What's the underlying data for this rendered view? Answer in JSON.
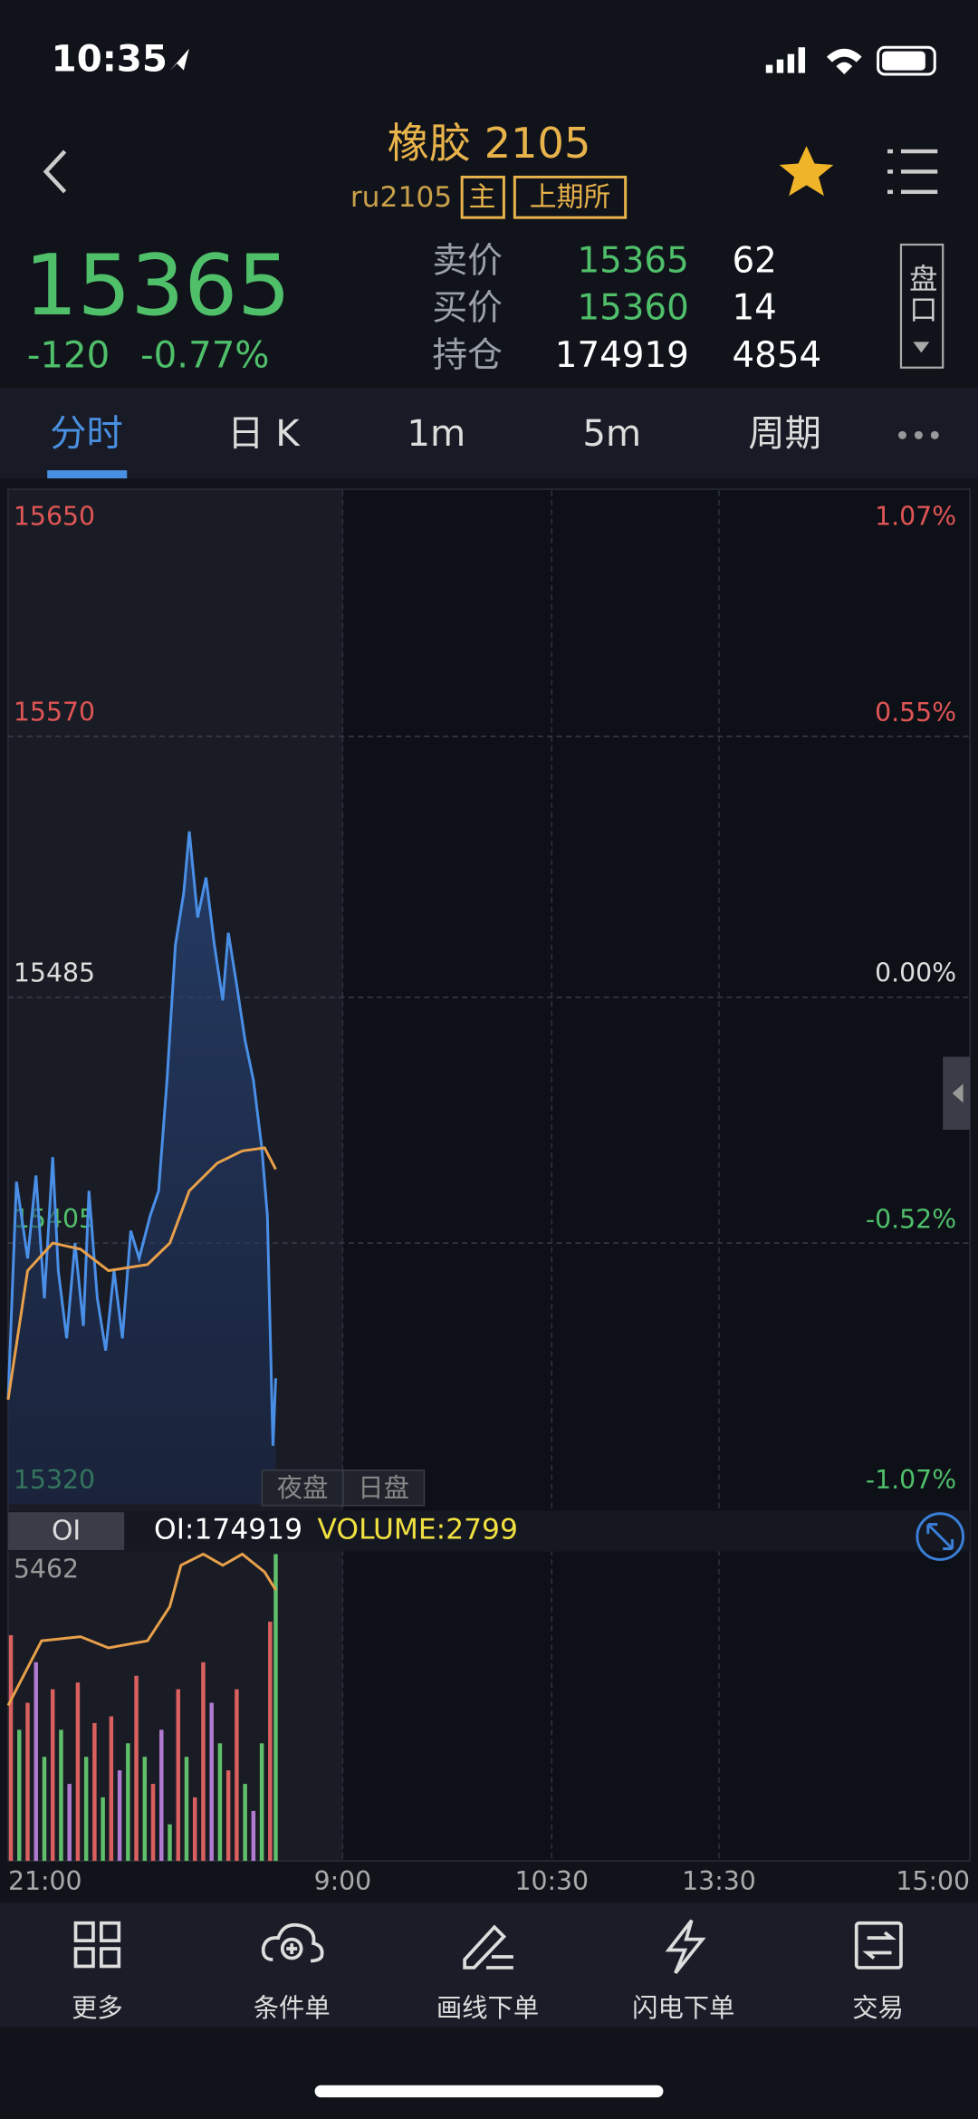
{
  "status_bar": {
    "time": "10:35"
  },
  "header": {
    "title": "橡胶 2105",
    "code": "ru2105",
    "tags": [
      "主",
      "上期所"
    ]
  },
  "quote": {
    "price": "15365",
    "change": "-120",
    "change_pct": "-0.77%",
    "book": [
      {
        "label": "卖价",
        "price": "15365",
        "qty": "62"
      },
      {
        "label": "买价",
        "price": "15360",
        "qty": "14"
      },
      {
        "label": "持仓",
        "price": "174919",
        "qty": "4854"
      }
    ],
    "depth_button": "盘口"
  },
  "tabs": [
    "分时",
    "日 K",
    "1m",
    "5m",
    "周期"
  ],
  "chart_data": [
    {
      "type": "line",
      "xlim": [
        0,
        345
      ],
      "ylim": [
        15320,
        15650
      ],
      "yticks": [
        15320,
        15405,
        15485,
        15570,
        15650
      ],
      "y2lim": [
        -1.07,
        1.07
      ],
      "y2ticks": [
        {
          "value": -1.07,
          "label": "-1.07%"
        },
        {
          "value": -0.52,
          "label": "-0.52%"
        },
        {
          "value": 0,
          "label": "0.00%"
        },
        {
          "value": 0.55,
          "label": "0.55%"
        },
        {
          "value": 1.07,
          "label": "1.07%"
        }
      ],
      "grid": true,
      "annotations": [
        "夜盘",
        "日盘"
      ],
      "series": [
        {
          "color": "#4a8fe7",
          "fill": true,
          "x": [
            0,
            3,
            7,
            10,
            13,
            16,
            18,
            21,
            24,
            27,
            29,
            32,
            35,
            38,
            41,
            44,
            47,
            51,
            54,
            57,
            60,
            63,
            65,
            68,
            71,
            74,
            77,
            79,
            82,
            85,
            88,
            91,
            93,
            95,
            96
          ],
          "values": [
            15354,
            15425,
            15400,
            15427,
            15387,
            15433,
            15396,
            15374,
            15405,
            15378,
            15422,
            15387,
            15370,
            15396,
            15374,
            15409,
            15400,
            15414,
            15422,
            15458,
            15502,
            15519,
            15539,
            15511,
            15524,
            15502,
            15484,
            15506,
            15489,
            15471,
            15458,
            15436,
            15414,
            15339,
            15361
          ]
        },
        {
          "color": "#e8a04a",
          "fill": false,
          "x": [
            0,
            7,
            16,
            26,
            36,
            50,
            58,
            65,
            75,
            84,
            92,
            96
          ],
          "values": [
            15354,
            15396,
            15405,
            15403,
            15396,
            15398,
            15405,
            15422,
            15431,
            15435,
            15436,
            15429
          ]
        }
      ]
    },
    {
      "type": "bar",
      "oi_tab": "OI",
      "oi_label": "OI:174919",
      "volume_label": "VOLUME:2799",
      "xlim": [
        0,
        345
      ],
      "xticks": [
        {
          "value": 0,
          "label": "21:00"
        },
        {
          "value": 120,
          "label": "9:00"
        },
        {
          "value": 195,
          "label": "10:30"
        },
        {
          "value": 255,
          "label": "13:30"
        },
        {
          "value": 345,
          "label": "15:00"
        }
      ],
      "ylim": [
        0,
        5462
      ],
      "yticks": [
        5462
      ],
      "x": [
        1,
        4,
        7,
        10,
        13,
        16,
        19,
        22,
        25,
        28,
        31,
        34,
        37,
        40,
        43,
        46,
        49,
        52,
        55,
        58,
        61,
        64,
        67,
        70,
        73,
        76,
        79,
        82,
        85,
        88,
        91,
        94,
        96
      ],
      "values": [
        4018,
        2334,
        2815,
        3537,
        1853,
        3056,
        2334,
        1371,
        3176,
        1853,
        2454,
        1131,
        2574,
        1612,
        2093,
        3296,
        1853,
        1371,
        2334,
        650,
        3056,
        1853,
        1131,
        3537,
        2815,
        2093,
        1612,
        3056,
        1371,
        890,
        2093,
        4259,
        5462
      ],
      "colors": [
        "#d9605e",
        "#5fbf6a",
        "#d9605e",
        "#b07ad0",
        "#5fbf6a",
        "#d9605e",
        "#5fbf6a",
        "#b07ad0",
        "#d9605e",
        "#5fbf6a",
        "#d9605e",
        "#5fbf6a",
        "#d9605e",
        "#b07ad0",
        "#5fbf6a",
        "#d9605e",
        "#5fbf6a",
        "#d9605e",
        "#b07ad0",
        "#5fbf6a",
        "#d9605e",
        "#5fbf6a",
        "#d9605e",
        "#d9605e",
        "#b07ad0",
        "#5fbf6a",
        "#d9605e",
        "#d9605e",
        "#5fbf6a",
        "#b07ad0",
        "#5fbf6a",
        "#d9605e",
        "#5fbf6a"
      ],
      "oi_line": {
        "color": "#e8a04a",
        "x": [
          0,
          12,
          26,
          36,
          50,
          58,
          62,
          70,
          77,
          84,
          92,
          96
        ],
        "values": [
          174558,
          174760,
          174773,
          174738,
          174760,
          174867,
          174996,
          175031,
          174996,
          175031,
          174975,
          174919
        ]
      }
    }
  ],
  "bottom_nav": [
    "更多",
    "条件单",
    "画线下单",
    "闪电下单",
    "交易"
  ]
}
